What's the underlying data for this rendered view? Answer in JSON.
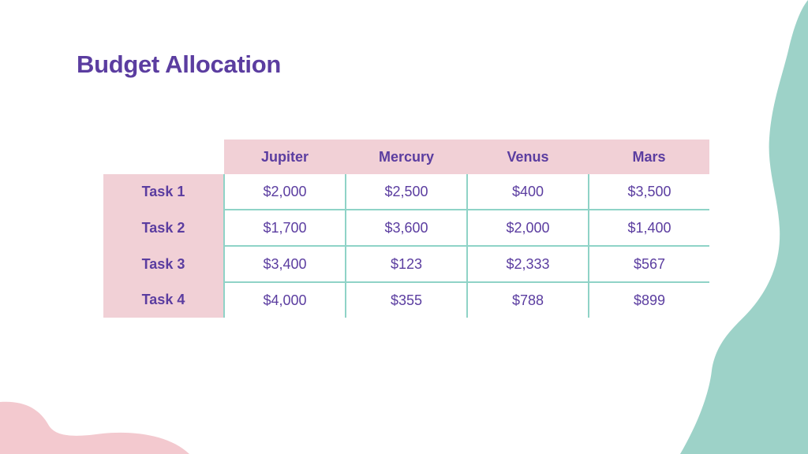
{
  "slide": {
    "title": "Budget Allocation",
    "colors": {
      "title": "#5b3da0",
      "header_fill": "#f1d0d6",
      "grid_line": "#8fd3c7",
      "teal_shape": "#9dd2c8",
      "pink_shape": "#f3c9cf"
    }
  },
  "table": {
    "columns": [
      "Jupiter",
      "Mercury",
      "Venus",
      "Mars"
    ],
    "rows": [
      {
        "label": "Task 1",
        "cells": [
          "$2,000",
          "$2,500",
          "$400",
          "$3,500"
        ]
      },
      {
        "label": "Task 2",
        "cells": [
          "$1,700",
          "$3,600",
          "$2,000",
          "$1,400"
        ]
      },
      {
        "label": "Task 3",
        "cells": [
          "$3,400",
          "$123",
          "$2,333",
          "$567"
        ]
      },
      {
        "label": "Task 4",
        "cells": [
          "$4,000",
          "$355",
          "$788",
          "$899"
        ]
      }
    ]
  }
}
